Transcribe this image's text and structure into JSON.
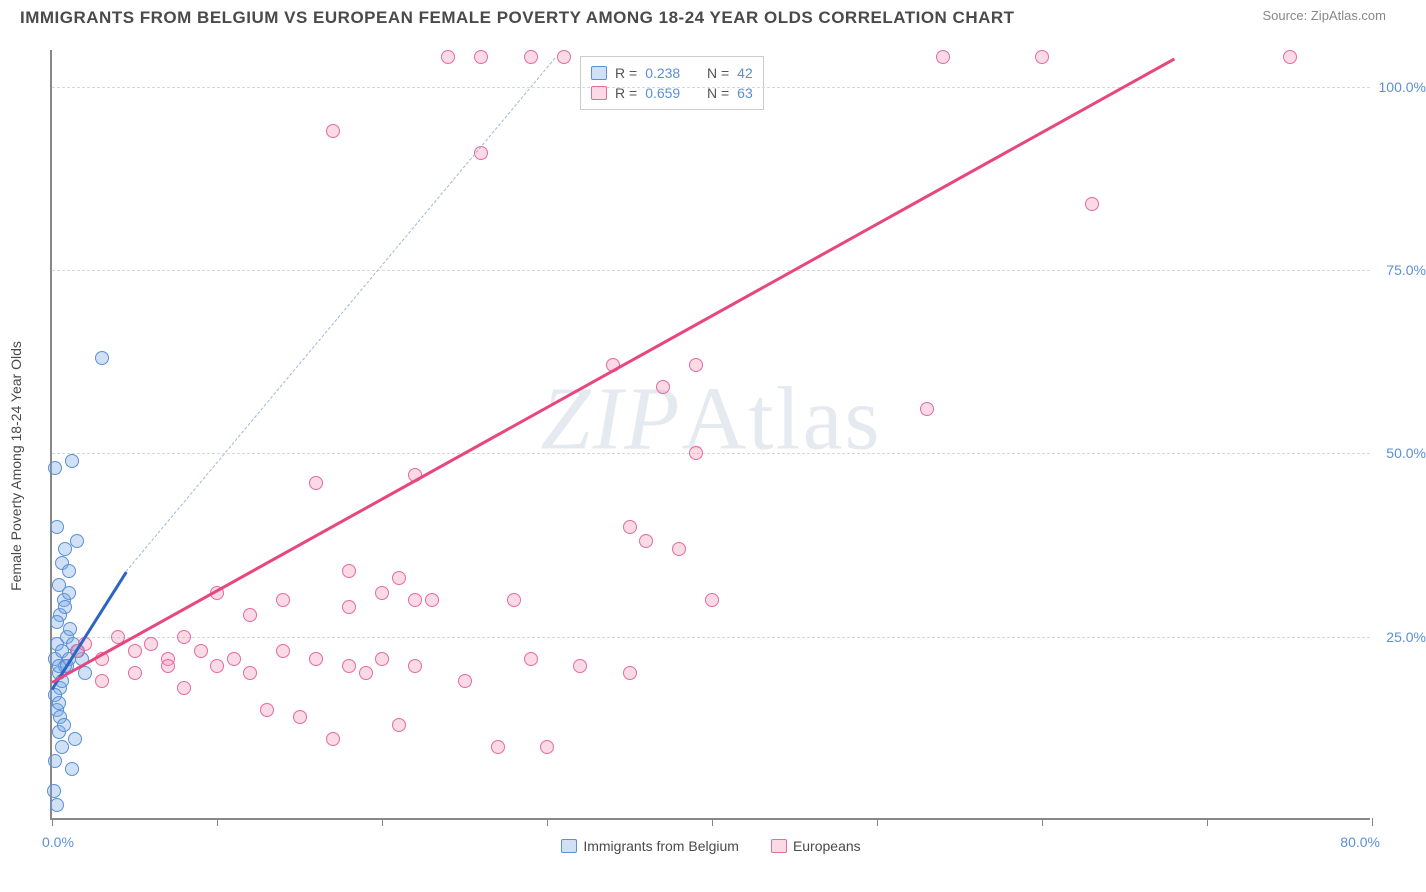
{
  "title": "IMMIGRANTS FROM BELGIUM VS EUROPEAN FEMALE POVERTY AMONG 18-24 YEAR OLDS CORRELATION CHART",
  "source_label": "Source: ",
  "source_name": "ZipAtlas.com",
  "ylabel": "Female Poverty Among 18-24 Year Olds",
  "watermark": {
    "part1": "ZIP",
    "part2": "Atlas"
  },
  "chart": {
    "type": "scatter",
    "background_color": "#ffffff",
    "grid_color": "#d8d8d8",
    "axis_color": "#888888",
    "xlim": [
      0,
      80
    ],
    "ylim": [
      0,
      105
    ],
    "xtick_positions": [
      0,
      10,
      20,
      30,
      40,
      50,
      60,
      70,
      80
    ],
    "xtick_labels": {
      "0": "0.0%",
      "80": "80.0%"
    },
    "ytick_positions": [
      25,
      50,
      75,
      100
    ],
    "ytick_labels": {
      "25": "25.0%",
      "50": "50.0%",
      "75": "75.0%",
      "100": "100.0%"
    },
    "label_color": "#5b8fd6",
    "label_fontsize": 14,
    "marker_size": 14,
    "marker_stroke_width": 1.5
  },
  "series": [
    {
      "name": "Immigrants from Belgium",
      "fill_color": "rgba(120,170,230,0.35)",
      "stroke_color": "#5b8fd6",
      "R": "0.238",
      "N": "42",
      "trend": {
        "x1": 0,
        "y1": 18,
        "x2": 4.5,
        "y2": 34,
        "solid_color": "#2b66c4",
        "solid_width": 3,
        "dash_extend_to": {
          "x": 30.5,
          "y": 104
        },
        "dash_color": "#9bb8d8"
      },
      "points": [
        [
          0.2,
          22
        ],
        [
          0.4,
          20
        ],
        [
          0.3,
          24
        ],
        [
          0.6,
          23
        ],
        [
          0.8,
          21
        ],
        [
          1.0,
          22
        ],
        [
          0.5,
          18
        ],
        [
          0.3,
          15
        ],
        [
          0.4,
          12
        ],
        [
          0.6,
          10
        ],
        [
          0.2,
          8
        ],
        [
          1.2,
          7
        ],
        [
          0.1,
          4
        ],
        [
          0.3,
          2
        ],
        [
          0.5,
          28
        ],
        [
          0.7,
          30
        ],
        [
          0.4,
          32
        ],
        [
          0.6,
          35
        ],
        [
          0.8,
          37
        ],
        [
          1.0,
          34
        ],
        [
          0.3,
          40
        ],
        [
          1.5,
          38
        ],
        [
          0.2,
          48
        ],
        [
          1.2,
          49
        ],
        [
          0.9,
          25
        ],
        [
          1.3,
          24
        ],
        [
          1.8,
          22
        ],
        [
          2.0,
          20
        ],
        [
          0.4,
          21
        ],
        [
          0.6,
          19
        ],
        [
          1.1,
          26
        ],
        [
          0.3,
          27
        ],
        [
          0.5,
          14
        ],
        [
          0.7,
          13
        ],
        [
          1.4,
          11
        ],
        [
          3.0,
          63
        ],
        [
          0.9,
          21
        ],
        [
          1.6,
          23
        ],
        [
          0.2,
          17
        ],
        [
          0.4,
          16
        ],
        [
          0.8,
          29
        ],
        [
          1.0,
          31
        ]
      ]
    },
    {
      "name": "Europeans",
      "fill_color": "rgba(240,150,180,0.35)",
      "stroke_color": "#e76aa0",
      "R": "0.659",
      "N": "63",
      "trend": {
        "x1": 0,
        "y1": 19,
        "x2": 68,
        "y2": 104,
        "solid_color": "#e7467f",
        "solid_width": 3,
        "dash_extend_to": null,
        "dash_color": "#f3b3c9"
      },
      "points": [
        [
          1.5,
          23
        ],
        [
          2,
          24
        ],
        [
          3,
          22
        ],
        [
          4,
          25
        ],
        [
          5,
          23
        ],
        [
          6,
          24
        ],
        [
          7,
          22
        ],
        [
          8,
          25
        ],
        [
          9,
          23
        ],
        [
          3,
          19
        ],
        [
          5,
          20
        ],
        [
          7,
          21
        ],
        [
          10,
          21
        ],
        [
          11,
          22
        ],
        [
          12,
          20
        ],
        [
          13,
          15
        ],
        [
          14,
          23
        ],
        [
          15,
          14
        ],
        [
          16,
          22
        ],
        [
          17,
          11
        ],
        [
          18,
          21
        ],
        [
          19,
          20
        ],
        [
          20,
          22
        ],
        [
          21,
          13
        ],
        [
          22,
          21
        ],
        [
          23,
          30
        ],
        [
          25,
          19
        ],
        [
          27,
          10
        ],
        [
          28,
          30
        ],
        [
          29,
          22
        ],
        [
          30,
          10
        ],
        [
          32,
          21
        ],
        [
          14,
          30
        ],
        [
          16,
          46
        ],
        [
          18,
          29
        ],
        [
          20,
          31
        ],
        [
          21,
          33
        ],
        [
          22,
          30
        ],
        [
          35,
          40
        ],
        [
          36,
          38
        ],
        [
          37,
          59
        ],
        [
          38,
          37
        ],
        [
          39,
          50
        ],
        [
          40,
          30
        ],
        [
          24,
          104
        ],
        [
          26,
          104
        ],
        [
          29,
          104
        ],
        [
          31,
          104
        ],
        [
          17,
          94
        ],
        [
          26,
          91
        ],
        [
          54,
          104
        ],
        [
          60,
          104
        ],
        [
          63,
          84
        ],
        [
          53,
          56
        ],
        [
          35,
          20
        ],
        [
          18,
          34
        ],
        [
          10,
          31
        ],
        [
          22,
          47
        ],
        [
          75,
          104
        ],
        [
          34,
          62
        ],
        [
          39,
          62
        ],
        [
          12,
          28
        ],
        [
          8,
          18
        ]
      ]
    }
  ],
  "bottom_legend": [
    {
      "label": "Immigrants from Belgium",
      "fill": "rgba(120,170,230,0.35)",
      "stroke": "#5b8fd6"
    },
    {
      "label": "Europeans",
      "fill": "rgba(240,150,180,0.35)",
      "stroke": "#e76aa0"
    }
  ]
}
